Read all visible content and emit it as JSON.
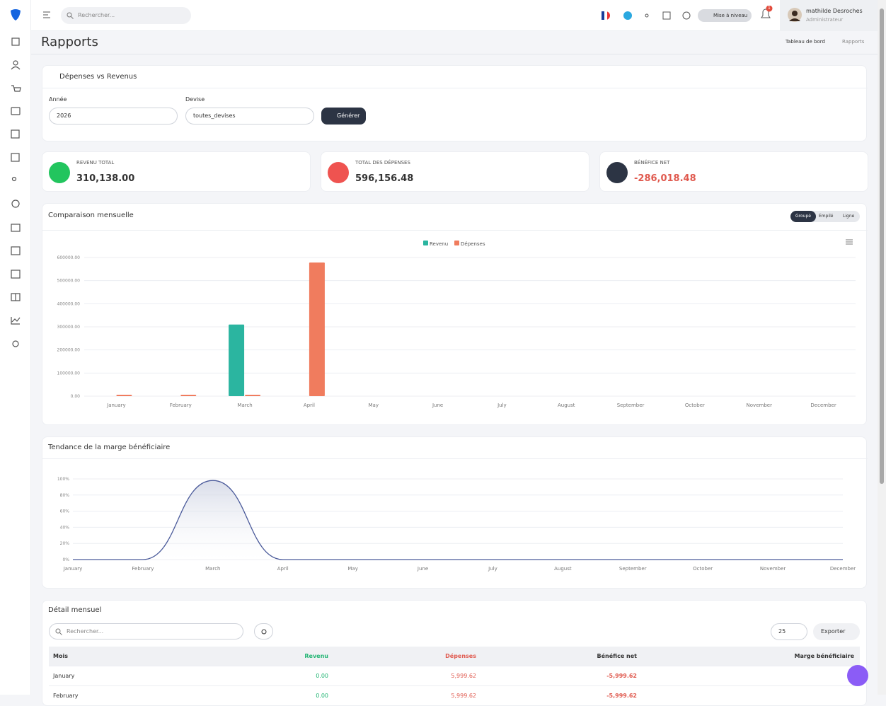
{
  "header": {
    "search_placeholder": "Rechercher...",
    "upgrade": "Mise à niveau",
    "notifications": "1",
    "user_name": "mathilde Desroches",
    "user_role": "Administrateur"
  },
  "page": {
    "title": "Rapports",
    "breadcrumb": [
      "Tableau de bord",
      "Rapports"
    ]
  },
  "filters": {
    "title": "Dépenses vs Revenus",
    "year_label": "Année",
    "year": "2026",
    "currency_label": "Devise",
    "currency": "toutes_devises",
    "button": "Générer"
  },
  "stats": [
    {
      "label": "REVENU TOTAL",
      "value": "310,138.00"
    },
    {
      "label": "TOTAL DES DÉPENSES",
      "value": "596,156.48"
    },
    {
      "label": "BÉNÉFICE NET",
      "value": "-286,018.48"
    }
  ],
  "chart_modes": [
    "Groupé",
    "Empilé",
    "Ligne"
  ],
  "chart_data": [
    {
      "type": "bar",
      "title": "Comparaison mensuelle",
      "categories": [
        "January",
        "February",
        "March",
        "April",
        "May",
        "June",
        "July",
        "August",
        "September",
        "October",
        "November",
        "December"
      ],
      "series": [
        {
          "name": "Revenu",
          "color": "#2bb5a0",
          "values": [
            0,
            0,
            310138,
            0,
            0,
            0,
            0,
            0,
            0,
            0,
            0,
            0
          ]
        },
        {
          "name": "Dépenses",
          "color": "#f07c5e",
          "values": [
            5999.62,
            5999.62,
            5999.62,
            578157.62,
            0,
            0,
            0,
            0,
            0,
            0,
            0,
            0
          ]
        }
      ],
      "ylim": [
        0,
        600000
      ],
      "yticks": [
        {
          "value": 0,
          "label": "0.00"
        },
        {
          "value": 100000,
          "label": "100000.00"
        },
        {
          "value": 200000,
          "label": "200000.00"
        },
        {
          "value": 300000,
          "label": "300000.00"
        },
        {
          "value": 400000,
          "label": "400000.00"
        },
        {
          "value": 500000,
          "label": "500000.00"
        },
        {
          "value": 600000,
          "label": "600000.00"
        }
      ],
      "grid": true,
      "legend": "top"
    },
    {
      "type": "line",
      "title": "Tendance de la marge bénéficiaire",
      "categories": [
        "January",
        "February",
        "March",
        "April",
        "May",
        "June",
        "July",
        "August",
        "September",
        "October",
        "November",
        "December"
      ],
      "series": [
        {
          "name": "Marge",
          "color": "#4a5a9a",
          "values": [
            0,
            0,
            98.07,
            0,
            0,
            0,
            0,
            0,
            0,
            0,
            0,
            0
          ]
        }
      ],
      "ylim": [
        0,
        100
      ],
      "yticks": [
        {
          "value": 0,
          "label": "0%"
        },
        {
          "value": 20,
          "label": "20%"
        },
        {
          "value": 40,
          "label": "40%"
        },
        {
          "value": 60,
          "label": "60%"
        },
        {
          "value": 80,
          "label": "80%"
        },
        {
          "value": 100,
          "label": "100%"
        }
      ],
      "grid": true
    }
  ],
  "table": {
    "title": "Détail mensuel",
    "search_placeholder": "Rechercher...",
    "page_size": "25",
    "export": "Exporter",
    "columns": [
      "Mois",
      "Revenu",
      "Dépenses",
      "Bénéfice net",
      "Marge bénéficiaire"
    ],
    "rows": [
      [
        "January",
        "0.00",
        "5,999.62",
        "-5,999.62"
      ],
      [
        "February",
        "0.00",
        "5,999.62",
        "-5,999.62"
      ]
    ]
  }
}
